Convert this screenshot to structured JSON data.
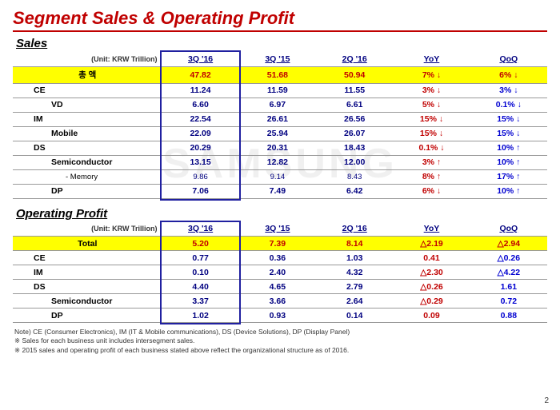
{
  "title": "Segment Sales & Operating Profit",
  "unit_label": "(Unit: KRW Trillion)",
  "columns": {
    "c1": "3Q '16",
    "c2": "3Q '15",
    "c3": "2Q '16",
    "c4": "YoY",
    "c5": "QoQ"
  },
  "sales": {
    "heading": "Sales",
    "total_label": "총   액",
    "rows": [
      {
        "label": "총   액",
        "v1": "47.82",
        "v2": "51.68",
        "v3": "50.94",
        "yoy": "7% ↓",
        "qoq": "6% ↓",
        "cls": "row-yellow",
        "lcls": "seg",
        "center": true
      },
      {
        "label": "CE",
        "v1": "11.24",
        "v2": "11.59",
        "v3": "11.55",
        "yoy": "3% ↓",
        "qoq": "3% ↓",
        "lcls": "indent1"
      },
      {
        "label": "VD",
        "v1": "6.60",
        "v2": "6.97",
        "v3": "6.61",
        "yoy": "5% ↓",
        "qoq": "0.1% ↓",
        "lcls": "indent2"
      },
      {
        "label": "IM",
        "v1": "22.54",
        "v2": "26.61",
        "v3": "26.56",
        "yoy": "15% ↓",
        "qoq": "15% ↓",
        "lcls": "indent1"
      },
      {
        "label": "Mobile",
        "v1": "22.09",
        "v2": "25.94",
        "v3": "26.07",
        "yoy": "15% ↓",
        "qoq": "15% ↓",
        "lcls": "indent2"
      },
      {
        "label": "DS",
        "v1": "20.29",
        "v2": "20.31",
        "v3": "18.43",
        "yoy": "0.1% ↓",
        "qoq": "10% ↑",
        "lcls": "indent1"
      },
      {
        "label": "Semiconductor",
        "v1": "13.15",
        "v2": "12.82",
        "v3": "12.00",
        "yoy": "3% ↑",
        "qoq": "10% ↑",
        "lcls": "indent2"
      },
      {
        "label": "- Memory",
        "v1": "9.86",
        "v2": "9.14",
        "v3": "8.43",
        "yoy": "8% ↑",
        "qoq": "17% ↑",
        "lcls": "indent3",
        "light": true
      },
      {
        "label": "DP",
        "v1": "7.06",
        "v2": "7.49",
        "v3": "6.42",
        "yoy": "6% ↓",
        "qoq": "10% ↑",
        "lcls": "indent2"
      }
    ]
  },
  "profit": {
    "heading": "Operating Profit",
    "rows": [
      {
        "label": "Total",
        "v1": "5.20",
        "v2": "7.39",
        "v3": "8.14",
        "yoy": "△2.19",
        "qoq": "△2.94",
        "cls": "row-yellow",
        "lcls": "seg",
        "center": true
      },
      {
        "label": "CE",
        "v1": "0.77",
        "v2": "0.36",
        "v3": "1.03",
        "yoy": "0.41",
        "qoq": "△0.26",
        "lcls": "indent1"
      },
      {
        "label": "IM",
        "v1": "0.10",
        "v2": "2.40",
        "v3": "4.32",
        "yoy": "△2.30",
        "qoq": "△4.22",
        "lcls": "indent1"
      },
      {
        "label": "DS",
        "v1": "4.40",
        "v2": "4.65",
        "v3": "2.79",
        "yoy": "△0.26",
        "qoq": "1.61",
        "lcls": "indent1"
      },
      {
        "label": "Semiconductor",
        "v1": "3.37",
        "v2": "3.66",
        "v3": "2.64",
        "yoy": "△0.29",
        "qoq": "0.72",
        "lcls": "indent2"
      },
      {
        "label": "DP",
        "v1": "1.02",
        "v2": "0.93",
        "v3": "0.14",
        "yoy": "0.09",
        "qoq": "0.88",
        "lcls": "indent2"
      }
    ]
  },
  "notes": [
    "Note) CE (Consumer Electronics), IM (IT & Mobile communications),  DS (Device Solutions), DP (Display Panel)",
    "※ Sales for each business unit includes intersegment sales.",
    "※ 2015 sales and operating profit of each business stated above reflect the organizational structure as of 2016."
  ],
  "page_number": "2",
  "watermark": "SAMSUNG"
}
